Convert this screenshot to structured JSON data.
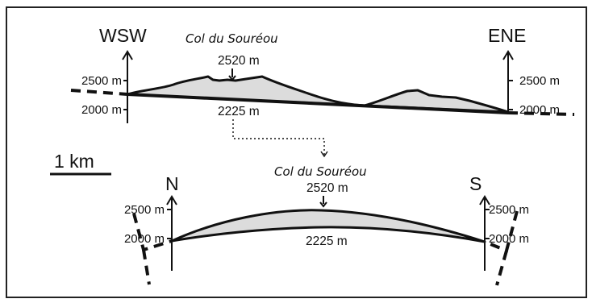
{
  "top_profile": {
    "left_direction": "WSW",
    "right_direction": "ENE",
    "summit_name": "Col du Souréou",
    "summit_elevation": "2520 m",
    "base_elevation": "2225 m",
    "left_axis_upper": "2500 m",
    "left_axis_lower": "2000 m",
    "right_axis_upper": "2500 m",
    "right_axis_lower": "2000 m"
  },
  "scale_bar": {
    "label": "1 km"
  },
  "bottom_profile": {
    "left_direction": "N",
    "right_direction": "S",
    "summit_name": "Col du Souréou",
    "summit_elevation": "2520 m",
    "base_elevation": "2225 m",
    "left_axis_upper": "2500 m",
    "left_axis_lower": "2000 m",
    "right_axis_upper": "2500 m",
    "right_axis_lower": "2000 m"
  },
  "colors": {
    "relief_fill": "#dcdcdc",
    "line": "#111111",
    "frame": "#222222"
  }
}
